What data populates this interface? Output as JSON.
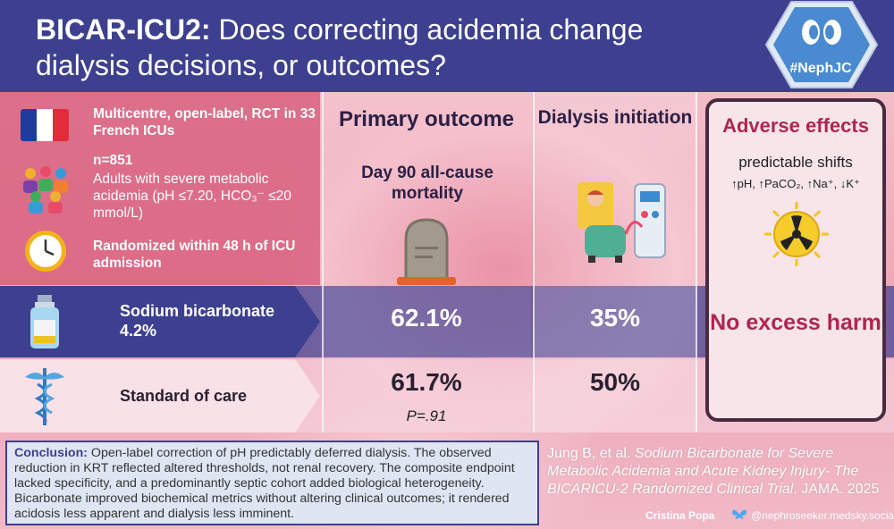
{
  "header": {
    "title_bold": "BICAR-ICU2:",
    "title_rest": " Does correcting acidemia change dialysis decisions, or outcomes?",
    "badge": "#NephJC"
  },
  "study": {
    "design": "Multicentre, open-label, RCT in 33 French ICUs",
    "n": "n=851",
    "population": "Adults with severe metabolic acidemia (pH ≤7.20, HCO₃⁻ ≤20 mmol/L)",
    "randomization": "Randomized within 48 h of ICU admission"
  },
  "arms": {
    "intervention": "Sodium bicarbonate 4.2%",
    "control": "Standard of care"
  },
  "primary": {
    "heading": "Primary outcome",
    "measure": "Day 90 all-cause mortality",
    "intervention_value": "62.1%",
    "control_value": "61.7%",
    "p_value": "P=.91"
  },
  "dialysis": {
    "heading": "Dialysis initiation",
    "intervention_value": "35%",
    "control_value": "50%"
  },
  "adverse": {
    "heading": "Adverse effects",
    "subheading": "predictable shifts",
    "shifts": "↑pH, ↑PaCO₂, ↑Na⁺, ↓K⁺",
    "verdict": "No excess harm"
  },
  "conclusion": {
    "label": "Conclusion:",
    "text": " Open-label correction of pH predictably deferred dialysis. The observed reduction in KRT reflected altered thresholds, not renal recovery. The composite endpoint lacked specificity, and a predominantly septic cohort added biological heterogeneity. Bicarbonate improved biochemical metrics without altering clinical outcomes; it rendered acidosis less apparent and dialysis less imminent."
  },
  "reference": {
    "authors": "Jung B, et al. ",
    "title": "Sodium Bicarbonate for Severe Metabolic Acidemia and Acute Kidney Injury- The BICARICU-2 Randomized Clinical Trial",
    "journal": ". JAMA. 2025"
  },
  "credit": {
    "name": "Cristina Popa",
    "handle": "@nephroseeker.medsky.social"
  },
  "colors": {
    "navy": "#3d3f8f",
    "rose": "#b0264f",
    "pink_panel": "#d65a78"
  }
}
